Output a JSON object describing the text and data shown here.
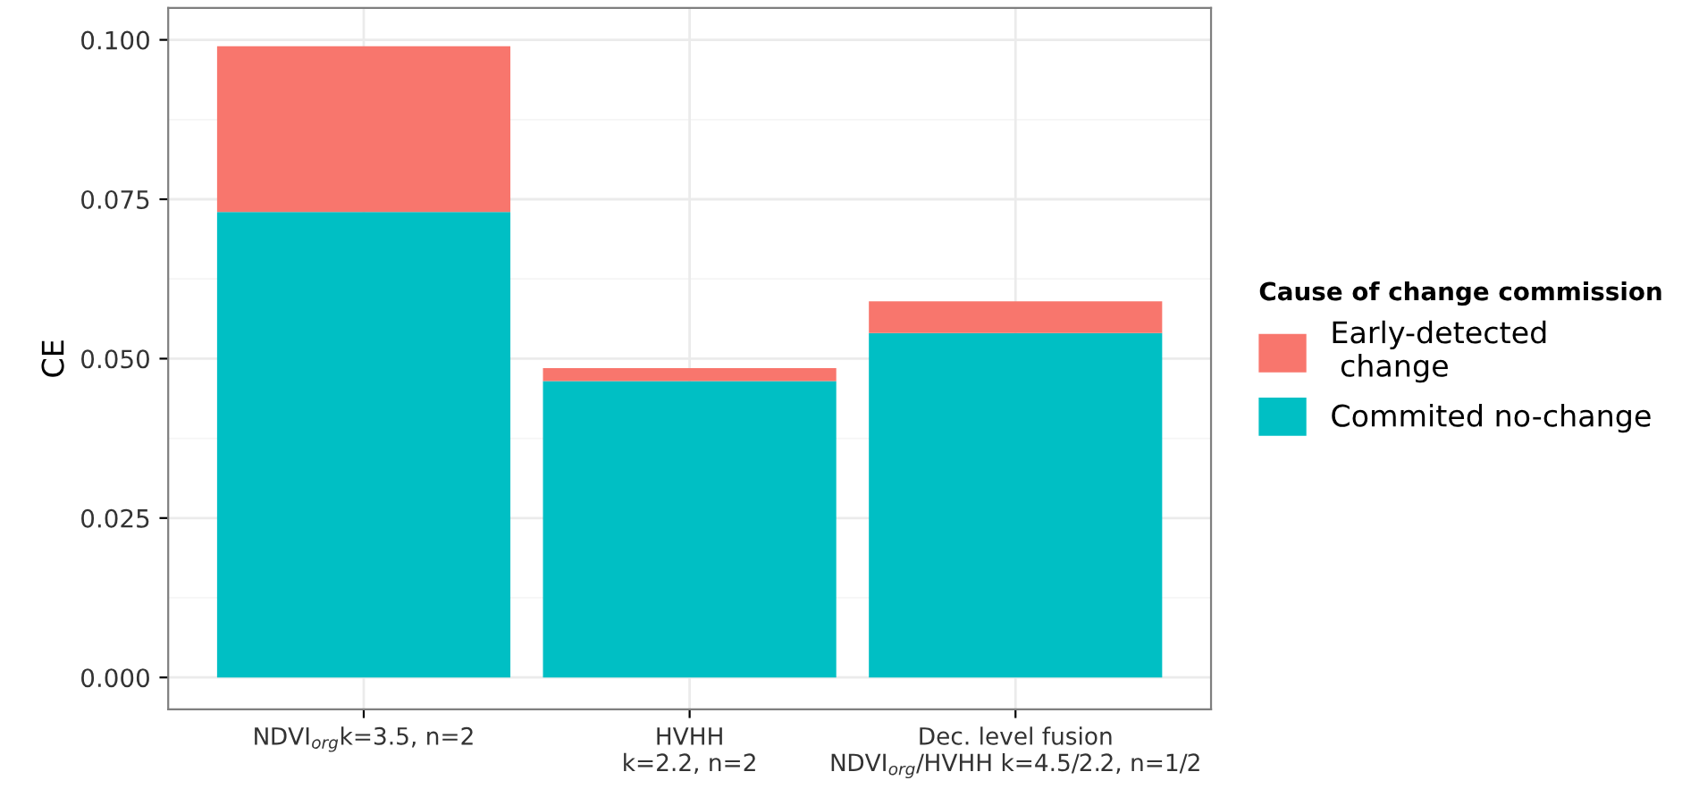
{
  "chart_data": {
    "type": "bar",
    "stacked": true,
    "ylabel": "CE",
    "legend_title": "Cause of change commission",
    "legend": "right",
    "grid": true,
    "categories": [
      "NDVI$_{org}$k=3.5, n=2",
      "HVHH\nk=2.2, n=2",
      "Dec. level fusion\nNDVI$_{org}$/HVHH k=4.5/2.2, n=1/2"
    ],
    "series": [
      {
        "name": "Commited no-change",
        "color": "#00bfc4",
        "values": [
          0.073,
          0.0465,
          0.054
        ]
      },
      {
        "name": "Early-detected\n change",
        "color": "#f8766d",
        "values": [
          0.026,
          0.002,
          0.005
        ]
      }
    ],
    "ylim": [
      -0.005,
      0.105
    ],
    "yticks": [
      {
        "value": 0,
        "label": "0.000"
      },
      {
        "value": 0.025,
        "label": "0.025"
      },
      {
        "value": 0.05,
        "label": "0.050"
      },
      {
        "value": 0.075,
        "label": "0.075"
      },
      {
        "value": 0.1,
        "label": "0.100"
      }
    ]
  }
}
